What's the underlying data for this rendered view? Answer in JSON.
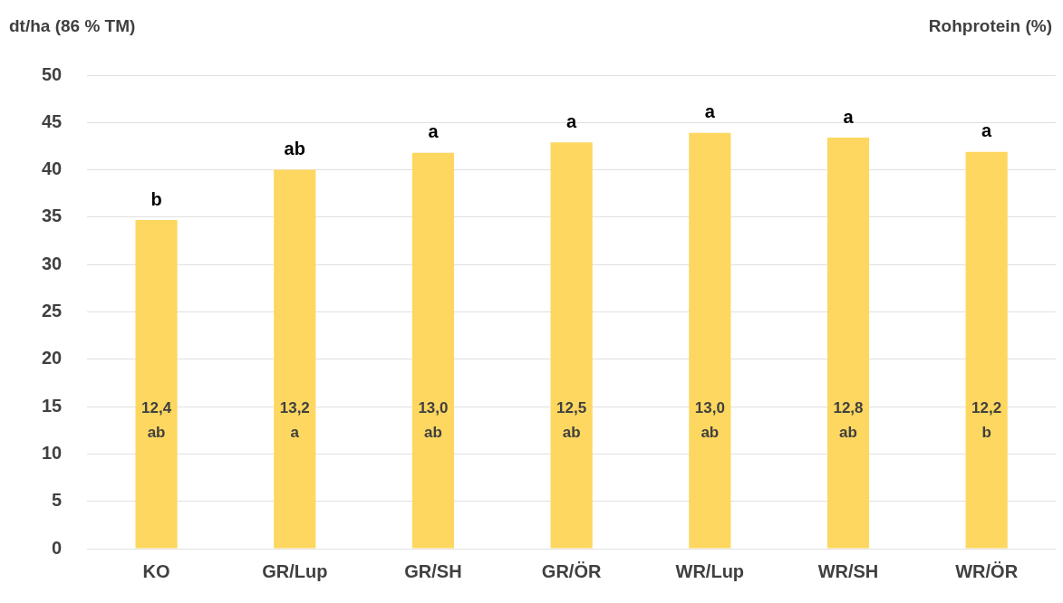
{
  "chart_data": {
    "type": "bar",
    "ylabel": "dt/ha (86 % TM)",
    "y2label": "Rohprotein (%)",
    "categories": [
      "KO",
      "GR/Lup",
      "GR/SH",
      "GR/ÖR",
      "WR/Lup",
      "WR/SH",
      "WR/ÖR"
    ],
    "values": [
      34.7,
      40.0,
      41.8,
      42.9,
      43.9,
      43.4,
      41.9
    ],
    "color": "#fdd75f",
    "ylim": [
      0,
      50
    ],
    "yticks": [
      0,
      5,
      10,
      15,
      20,
      25,
      30,
      35,
      40,
      45,
      50
    ],
    "grid": "y",
    "legend": false,
    "annotations": [
      {
        "text": "b",
        "x": "KO",
        "y": 34.7
      },
      {
        "text": "ab",
        "x": "GR/Lup",
        "y": 40.0
      },
      {
        "text": "a",
        "x": "GR/SH",
        "y": 41.8
      },
      {
        "text": "a",
        "x": "GR/ÖR",
        "y": 42.9
      },
      {
        "text": "a",
        "x": "WR/Lup",
        "y": 43.9
      },
      {
        "text": "a",
        "x": "WR/SH",
        "y": 43.4
      },
      {
        "text": "a",
        "x": "WR/ÖR",
        "y": 41.9
      },
      "12,4\nab",
      "13,2\na",
      "13,0\nab",
      "12,5\nab",
      "13,0\nab",
      "12,8\nab",
      "12,2\nb"
    ]
  }
}
